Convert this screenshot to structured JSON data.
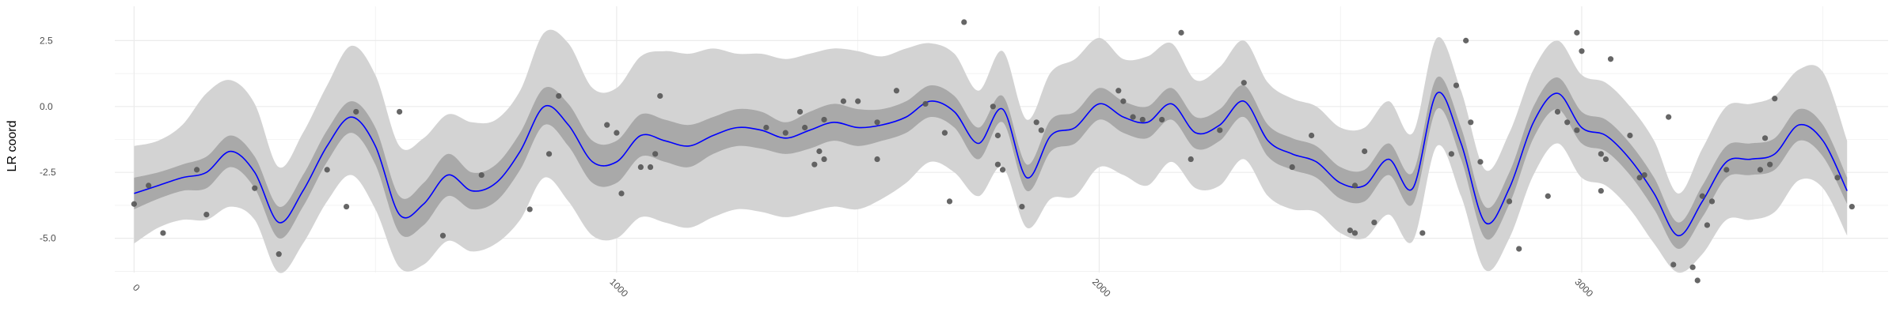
{
  "chart_data": {
    "type": "line",
    "title": "",
    "xlabel": "",
    "ylabel": "LR coord",
    "xlim": [
      -40,
      3635
    ],
    "ylim": [
      -6.3,
      3.8
    ],
    "x_ticks": [
      0,
      1000,
      2000,
      3000
    ],
    "x_tick_labels": [
      "0",
      "1000",
      "2000",
      "3000"
    ],
    "y_ticks": [
      2.5,
      0.0,
      -2.5,
      -5.0
    ],
    "y_tick_labels": [
      "2.5",
      "0.0",
      "-2.5",
      "-5.0"
    ],
    "grid": true,
    "legend": "none",
    "colors": {
      "mean_line": "#0000ff",
      "inner_band": "#a9a9a9",
      "outer_band": "#d3d3d3",
      "points": "#555555",
      "grid": "#ebebeb",
      "background": "#ffffff"
    },
    "series": [
      {
        "role": "mean",
        "x": [
          0,
          50,
          100,
          150,
          200,
          250,
          300,
          350,
          400,
          450,
          500,
          550,
          600,
          650,
          700,
          750,
          800,
          850,
          900,
          950,
          1000,
          1050,
          1100,
          1150,
          1200,
          1250,
          1300,
          1350,
          1400,
          1450,
          1500,
          1550,
          1600,
          1650,
          1700,
          1750,
          1800,
          1850,
          1900,
          1950,
          2000,
          2050,
          2100,
          2150,
          2200,
          2250,
          2300,
          2350,
          2400,
          2450,
          2500,
          2550,
          2600,
          2650,
          2700,
          2750,
          2800,
          2850,
          2900,
          2950,
          3000,
          3050,
          3100,
          3150,
          3200,
          3250,
          3300,
          3350,
          3400,
          3450,
          3500,
          3550
        ],
        "y": [
          -3.3,
          -3.0,
          -2.7,
          -2.5,
          -1.7,
          -2.5,
          -4.4,
          -3.2,
          -1.5,
          -0.4,
          -1.5,
          -4.1,
          -3.7,
          -2.6,
          -3.2,
          -2.9,
          -1.7,
          0.0,
          -0.7,
          -2.1,
          -2.1,
          -1.1,
          -1.3,
          -1.5,
          -1.1,
          -0.8,
          -0.9,
          -1.2,
          -0.9,
          -0.6,
          -0.8,
          -0.7,
          -0.4,
          0.2,
          -0.2,
          -1.4,
          -0.1,
          -2.7,
          -1.1,
          -0.8,
          0.1,
          -0.4,
          -0.6,
          0.1,
          -1.0,
          -0.7,
          0.2,
          -1.3,
          -1.8,
          -2.1,
          -2.9,
          -3.0,
          -2.0,
          -3.1,
          0.5,
          -1.4,
          -4.4,
          -3.1,
          -0.6,
          0.5,
          -0.8,
          -1.1,
          -2.0,
          -3.3,
          -4.9,
          -3.6,
          -2.1,
          -2.0,
          -1.8,
          -0.7,
          -1.3,
          -3.2
        ]
      },
      {
        "role": "inner_band",
        "x": [
          0,
          50,
          100,
          150,
          200,
          250,
          300,
          350,
          400,
          450,
          500,
          550,
          600,
          650,
          700,
          750,
          800,
          850,
          900,
          950,
          1000,
          1050,
          1100,
          1150,
          1200,
          1250,
          1300,
          1350,
          1400,
          1450,
          1500,
          1550,
          1600,
          1650,
          1700,
          1750,
          1800,
          1850,
          1900,
          1950,
          2000,
          2050,
          2100,
          2150,
          2200,
          2250,
          2300,
          2350,
          2400,
          2450,
          2500,
          2550,
          2600,
          2650,
          2700,
          2750,
          2800,
          2850,
          2900,
          2950,
          3000,
          3050,
          3100,
          3150,
          3200,
          3250,
          3300,
          3350,
          3400,
          3450,
          3500,
          3550
        ],
        "lower": [
          -3.9,
          -3.5,
          -3.2,
          -3.1,
          -2.3,
          -3.1,
          -5.0,
          -3.8,
          -2.1,
          -1.0,
          -2.2,
          -4.8,
          -4.5,
          -3.4,
          -3.9,
          -3.6,
          -2.4,
          -0.7,
          -1.5,
          -2.9,
          -2.9,
          -1.9,
          -2.1,
          -2.3,
          -1.8,
          -1.5,
          -1.6,
          -1.8,
          -1.6,
          -1.3,
          -1.5,
          -1.3,
          -1.0,
          -0.4,
          -0.8,
          -2.0,
          -0.6,
          -3.2,
          -1.7,
          -1.4,
          -0.5,
          -1.0,
          -1.2,
          -0.5,
          -1.6,
          -1.3,
          -0.4,
          -1.9,
          -2.4,
          -2.7,
          -3.5,
          -3.6,
          -2.6,
          -3.7,
          -0.1,
          -2.0,
          -5.0,
          -3.7,
          -1.2,
          -0.1,
          -1.4,
          -1.7,
          -2.6,
          -3.9,
          -5.4,
          -4.2,
          -2.7,
          -2.6,
          -2.4,
          -1.3,
          -1.9,
          -3.7
        ],
        "upper": [
          -2.7,
          -2.5,
          -2.2,
          -1.9,
          -1.1,
          -1.9,
          -3.8,
          -2.6,
          -0.9,
          0.2,
          -0.8,
          -3.4,
          -2.9,
          -1.8,
          -2.5,
          -2.2,
          -1.0,
          0.7,
          0.1,
          -1.3,
          -1.3,
          -0.3,
          -0.5,
          -0.7,
          -0.4,
          -0.1,
          -0.2,
          -0.6,
          -0.2,
          0.1,
          -0.1,
          -0.1,
          0.2,
          0.8,
          0.4,
          -0.8,
          0.4,
          -2.2,
          -0.5,
          -0.2,
          0.7,
          0.2,
          0.0,
          0.7,
          -0.4,
          -0.1,
          0.8,
          -0.7,
          -1.2,
          -1.5,
          -2.3,
          -2.4,
          -1.4,
          -2.5,
          1.1,
          -0.8,
          -3.8,
          -2.5,
          0.0,
          1.1,
          -0.2,
          -0.5,
          -1.4,
          -2.7,
          -4.4,
          -3.0,
          -1.5,
          -1.4,
          -1.2,
          -0.1,
          -0.7,
          -2.7
        ]
      },
      {
        "role": "outer_band",
        "x": [
          0,
          50,
          100,
          150,
          200,
          250,
          300,
          350,
          400,
          450,
          500,
          550,
          600,
          650,
          700,
          750,
          800,
          850,
          900,
          950,
          1000,
          1050,
          1100,
          1150,
          1200,
          1250,
          1300,
          1350,
          1400,
          1450,
          1500,
          1550,
          1600,
          1650,
          1700,
          1750,
          1800,
          1850,
          1900,
          1950,
          2000,
          2050,
          2100,
          2150,
          2200,
          2250,
          2300,
          2350,
          2400,
          2450,
          2500,
          2550,
          2600,
          2650,
          2700,
          2750,
          2800,
          2850,
          2900,
          2950,
          3000,
          3050,
          3100,
          3150,
          3200,
          3250,
          3300,
          3350,
          3400,
          3450,
          3500,
          3550
        ],
        "lower": [
          -5.2,
          -4.6,
          -4.3,
          -4.3,
          -3.8,
          -4.3,
          -6.3,
          -5.2,
          -3.6,
          -2.6,
          -3.9,
          -6.1,
          -6.0,
          -5.1,
          -5.5,
          -5.2,
          -4.3,
          -2.7,
          -3.6,
          -4.9,
          -5.0,
          -4.2,
          -4.4,
          -4.6,
          -4.2,
          -3.9,
          -4.0,
          -4.2,
          -4.0,
          -3.8,
          -3.9,
          -3.5,
          -2.9,
          -2.1,
          -2.5,
          -3.4,
          -2.3,
          -4.6,
          -3.5,
          -3.4,
          -2.3,
          -2.6,
          -3.0,
          -2.1,
          -3.1,
          -3.0,
          -2.0,
          -3.4,
          -3.9,
          -4.0,
          -4.8,
          -5.0,
          -4.1,
          -5.1,
          -1.5,
          -3.4,
          -6.2,
          -5.0,
          -2.6,
          -1.4,
          -2.7,
          -3.0,
          -3.9,
          -5.2,
          -6.3,
          -5.6,
          -4.3,
          -4.3,
          -4.0,
          -2.8,
          -3.1,
          -4.9
        ],
        "upper": [
          -1.5,
          -1.3,
          -0.7,
          0.5,
          1.0,
          0.1,
          -2.3,
          -1.0,
          0.8,
          2.3,
          1.2,
          -1.5,
          -1.2,
          -0.3,
          -0.6,
          -0.5,
          0.6,
          2.8,
          2.4,
          0.7,
          0.7,
          1.9,
          2.1,
          2.0,
          2.2,
          2.0,
          2.0,
          1.8,
          2.0,
          2.2,
          2.1,
          1.9,
          2.2,
          2.4,
          2.0,
          0.6,
          2.1,
          -0.5,
          1.3,
          1.8,
          2.6,
          1.8,
          1.9,
          2.4,
          1.0,
          1.5,
          2.5,
          0.9,
          0.3,
          0.0,
          -0.8,
          -0.8,
          0.2,
          -1.0,
          2.6,
          0.6,
          -2.4,
          -1.0,
          1.4,
          2.5,
          1.2,
          0.9,
          0.0,
          -1.3,
          -3.3,
          -1.6,
          0.0,
          0.1,
          0.4,
          1.4,
          1.3,
          -1.3
        ]
      }
    ],
    "points": [
      {
        "x": 0,
        "y": -3.7
      },
      {
        "x": 30,
        "y": -3.0
      },
      {
        "x": 60,
        "y": -4.8
      },
      {
        "x": 130,
        "y": -2.4
      },
      {
        "x": 150,
        "y": -4.1
      },
      {
        "x": 250,
        "y": -3.1
      },
      {
        "x": 300,
        "y": -5.6
      },
      {
        "x": 400,
        "y": -2.4
      },
      {
        "x": 440,
        "y": -3.8
      },
      {
        "x": 460,
        "y": -0.2
      },
      {
        "x": 550,
        "y": -0.2
      },
      {
        "x": 640,
        "y": -4.9
      },
      {
        "x": 720,
        "y": -2.6
      },
      {
        "x": 820,
        "y": -3.9
      },
      {
        "x": 860,
        "y": -1.8
      },
      {
        "x": 880,
        "y": 0.4
      },
      {
        "x": 980,
        "y": -0.7
      },
      {
        "x": 1000,
        "y": -1.0
      },
      {
        "x": 1010,
        "y": -3.3
      },
      {
        "x": 1050,
        "y": -2.3
      },
      {
        "x": 1070,
        "y": -2.3
      },
      {
        "x": 1080,
        "y": -1.8
      },
      {
        "x": 1090,
        "y": 0.4
      },
      {
        "x": 1310,
        "y": -0.8
      },
      {
        "x": 1350,
        "y": -1.0
      },
      {
        "x": 1380,
        "y": -0.2
      },
      {
        "x": 1390,
        "y": -0.8
      },
      {
        "x": 1410,
        "y": -2.2
      },
      {
        "x": 1420,
        "y": -1.7
      },
      {
        "x": 1430,
        "y": -2.0
      },
      {
        "x": 1430,
        "y": -0.5
      },
      {
        "x": 1470,
        "y": 0.2
      },
      {
        "x": 1500,
        "y": 0.2
      },
      {
        "x": 1540,
        "y": -2.0
      },
      {
        "x": 1540,
        "y": -0.6
      },
      {
        "x": 1580,
        "y": 0.6
      },
      {
        "x": 1640,
        "y": 0.1
      },
      {
        "x": 1680,
        "y": -1.0
      },
      {
        "x": 1690,
        "y": -3.6
      },
      {
        "x": 1720,
        "y": 3.2
      },
      {
        "x": 1780,
        "y": 0.0
      },
      {
        "x": 1790,
        "y": -1.1
      },
      {
        "x": 1790,
        "y": -2.2
      },
      {
        "x": 1800,
        "y": -2.4
      },
      {
        "x": 1840,
        "y": -3.8
      },
      {
        "x": 1870,
        "y": -0.6
      },
      {
        "x": 1880,
        "y": -0.9
      },
      {
        "x": 2040,
        "y": 0.6
      },
      {
        "x": 2050,
        "y": 0.2
      },
      {
        "x": 2070,
        "y": -0.4
      },
      {
        "x": 2090,
        "y": -0.5
      },
      {
        "x": 2130,
        "y": -0.5
      },
      {
        "x": 2170,
        "y": 2.8
      },
      {
        "x": 2190,
        "y": -2.0
      },
      {
        "x": 2250,
        "y": -0.9
      },
      {
        "x": 2300,
        "y": 0.9
      },
      {
        "x": 2400,
        "y": -2.3
      },
      {
        "x": 2440,
        "y": -1.1
      },
      {
        "x": 2520,
        "y": -4.7
      },
      {
        "x": 2530,
        "y": -4.8
      },
      {
        "x": 2530,
        "y": -3.0
      },
      {
        "x": 2550,
        "y": -1.7
      },
      {
        "x": 2570,
        "y": -4.4
      },
      {
        "x": 2670,
        "y": -4.8
      },
      {
        "x": 2730,
        "y": -1.8
      },
      {
        "x": 2740,
        "y": 0.8
      },
      {
        "x": 2760,
        "y": 2.5
      },
      {
        "x": 2770,
        "y": -0.6
      },
      {
        "x": 2790,
        "y": -2.1
      },
      {
        "x": 2850,
        "y": -3.6
      },
      {
        "x": 2870,
        "y": -5.4
      },
      {
        "x": 2930,
        "y": -3.4
      },
      {
        "x": 2950,
        "y": -0.2
      },
      {
        "x": 2970,
        "y": -0.6
      },
      {
        "x": 2990,
        "y": -0.9
      },
      {
        "x": 2990,
        "y": 2.8
      },
      {
        "x": 3000,
        "y": 2.1
      },
      {
        "x": 3040,
        "y": -1.8
      },
      {
        "x": 3050,
        "y": -2.0
      },
      {
        "x": 3060,
        "y": 1.8
      },
      {
        "x": 3040,
        "y": -3.2
      },
      {
        "x": 3100,
        "y": -1.1
      },
      {
        "x": 3120,
        "y": -2.7
      },
      {
        "x": 3130,
        "y": -2.6
      },
      {
        "x": 3180,
        "y": -0.4
      },
      {
        "x": 3190,
        "y": -6.0
      },
      {
        "x": 3230,
        "y": -6.1
      },
      {
        "x": 3240,
        "y": -6.6
      },
      {
        "x": 3250,
        "y": -3.4
      },
      {
        "x": 3260,
        "y": -4.5
      },
      {
        "x": 3270,
        "y": -3.6
      },
      {
        "x": 3300,
        "y": -2.4
      },
      {
        "x": 3370,
        "y": -2.4
      },
      {
        "x": 3380,
        "y": -1.2
      },
      {
        "x": 3390,
        "y": -2.2
      },
      {
        "x": 3400,
        "y": 0.3
      },
      {
        "x": 3530,
        "y": -2.7
      },
      {
        "x": 3560,
        "y": -3.8
      }
    ]
  }
}
